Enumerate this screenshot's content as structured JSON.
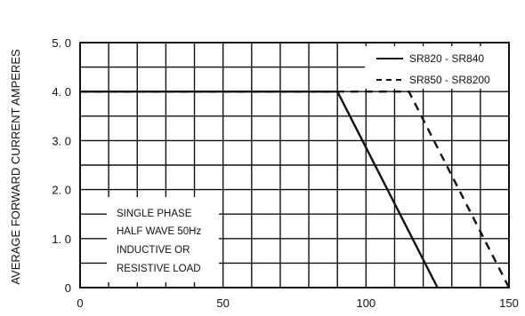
{
  "chart_data": {
    "type": "line",
    "title": "",
    "xlabel": "",
    "ylabel": "AVERAGE FORWARD CURRENT  AMPERES",
    "xlim": [
      0,
      150
    ],
    "ylim": [
      0,
      5
    ],
    "grid": true,
    "x_ticks": [
      {
        "value": 0,
        "label": "0"
      },
      {
        "value": 50,
        "label": "50"
      },
      {
        "value": 100,
        "label": "100"
      },
      {
        "value": 150,
        "label": "150"
      }
    ],
    "y_ticks": [
      {
        "value": 0,
        "label": "0"
      },
      {
        "value": 1,
        "label": "1. 0"
      },
      {
        "value": 2,
        "label": "2. 0"
      },
      {
        "value": 3,
        "label": "3. 0"
      },
      {
        "value": 4,
        "label": "4. 0"
      },
      {
        "value": 5,
        "label": "5. 0"
      }
    ],
    "legend_position": "top-right",
    "series": [
      {
        "name": "SR820 - SR840",
        "style": "solid",
        "x": [
          0,
          90,
          125
        ],
        "y": [
          4.0,
          4.0,
          0
        ]
      },
      {
        "name": "SR850 - SR8200",
        "style": "dashed",
        "x": [
          0,
          115,
          150
        ],
        "y": [
          4.0,
          4.0,
          0
        ]
      }
    ],
    "annotation": [
      "SINGLE PHASE",
      "HALF WAVE 50Hz",
      "INDUCTIVE OR",
      "RESISTIVE  LOAD"
    ],
    "colors": {
      "line": "#111111",
      "grid": "#111111",
      "background": "#ffffff"
    }
  }
}
